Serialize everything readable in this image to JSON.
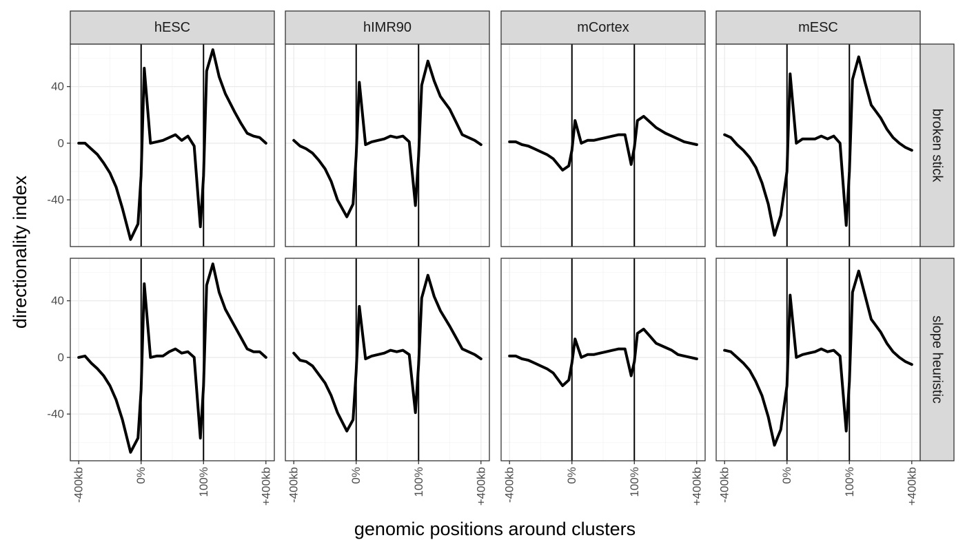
{
  "chart_data": {
    "type": "line",
    "xlabel": "genomic positions around clusters",
    "ylabel": "directionality index",
    "columns": [
      "hESC",
      "hIMR90",
      "mCortex",
      "mESC"
    ],
    "rows": [
      "broken stick",
      "slope heuristic"
    ],
    "x_ticks": [
      {
        "value": -1.0,
        "label": "-400kb"
      },
      {
        "value": 0.0,
        "label": "0%"
      },
      {
        "value": 1.0,
        "label": "100%"
      },
      {
        "value": 2.0,
        "label": "+400kb"
      }
    ],
    "x_range": [
      -1.0,
      2.0
    ],
    "y_ticks": [
      {
        "value": -40,
        "label": "-40"
      },
      {
        "value": 0,
        "label": "0"
      },
      {
        "value": 40,
        "label": "40"
      }
    ],
    "ylim": [
      -73,
      70
    ],
    "vertical_lines": [
      0,
      1
    ],
    "grid": true,
    "series": [
      {
        "column": "hESC",
        "row": "broken stick",
        "x": [
          -1.0,
          -0.9,
          -0.8,
          -0.7,
          -0.6,
          -0.5,
          -0.4,
          -0.3,
          -0.17,
          -0.05,
          0.0,
          0.05,
          0.15,
          0.25,
          0.35,
          0.45,
          0.55,
          0.65,
          0.75,
          0.85,
          0.95,
          1.0,
          1.05,
          1.15,
          1.25,
          1.35,
          1.5,
          1.6,
          1.7,
          1.8,
          1.9,
          2.0
        ],
        "y": [
          0,
          0,
          -4,
          -8,
          -14,
          -21,
          -31,
          -46,
          -68,
          -57,
          -23,
          53,
          0,
          1,
          2,
          4,
          6,
          2,
          5,
          -2,
          -59,
          -23,
          51,
          66,
          47,
          35,
          22,
          14,
          7,
          5,
          4,
          0
        ]
      },
      {
        "column": "hIMR90",
        "row": "broken stick",
        "x": [
          -1.0,
          -0.9,
          -0.8,
          -0.7,
          -0.6,
          -0.5,
          -0.4,
          -0.3,
          -0.15,
          -0.05,
          0.0,
          0.05,
          0.15,
          0.25,
          0.35,
          0.45,
          0.55,
          0.65,
          0.75,
          0.85,
          0.95,
          1.0,
          1.05,
          1.15,
          1.25,
          1.35,
          1.5,
          1.6,
          1.7,
          1.8,
          1.9,
          2.0
        ],
        "y": [
          2,
          -2,
          -4,
          -7,
          -12,
          -18,
          -27,
          -40,
          -52,
          -43,
          -9,
          43,
          -1,
          1,
          2,
          3,
          5,
          4,
          5,
          1,
          -44,
          -9,
          41,
          58,
          44,
          33,
          24,
          15,
          6,
          4,
          2,
          -1
        ]
      },
      {
        "column": "mCortex",
        "row": "broken stick",
        "x": [
          -1.0,
          -0.9,
          -0.8,
          -0.7,
          -0.6,
          -0.5,
          -0.4,
          -0.3,
          -0.15,
          -0.05,
          0.0,
          0.05,
          0.15,
          0.25,
          0.35,
          0.45,
          0.55,
          0.65,
          0.75,
          0.85,
          0.95,
          1.0,
          1.05,
          1.15,
          1.25,
          1.35,
          1.5,
          1.6,
          1.7,
          1.8,
          1.9,
          2.0
        ],
        "y": [
          1,
          1,
          -1,
          -2,
          -4,
          -6,
          -8,
          -11,
          -19,
          -16,
          -5,
          16,
          0,
          2,
          2,
          3,
          4,
          5,
          6,
          6,
          -15,
          -3,
          16,
          19,
          15,
          11,
          7,
          5,
          3,
          1,
          0,
          -1
        ]
      },
      {
        "column": "mESC",
        "row": "broken stick",
        "x": [
          -1.0,
          -0.9,
          -0.8,
          -0.7,
          -0.6,
          -0.5,
          -0.4,
          -0.3,
          -0.2,
          -0.1,
          0.0,
          0.05,
          0.15,
          0.25,
          0.35,
          0.45,
          0.55,
          0.65,
          0.75,
          0.85,
          0.95,
          1.0,
          1.05,
          1.15,
          1.25,
          1.35,
          1.5,
          1.6,
          1.7,
          1.8,
          1.9,
          2.0
        ],
        "y": [
          6,
          4,
          -1,
          -5,
          -10,
          -17,
          -28,
          -43,
          -65,
          -51,
          -20,
          49,
          0,
          3,
          3,
          3,
          5,
          3,
          5,
          0,
          -58,
          -20,
          45,
          61,
          43,
          27,
          18,
          10,
          4,
          0,
          -3,
          -5
        ]
      },
      {
        "column": "hESC",
        "row": "slope heuristic",
        "x": [
          -1.0,
          -0.9,
          -0.8,
          -0.7,
          -0.6,
          -0.5,
          -0.4,
          -0.3,
          -0.17,
          -0.05,
          0.0,
          0.05,
          0.15,
          0.25,
          0.35,
          0.45,
          0.55,
          0.65,
          0.75,
          0.85,
          0.95,
          1.0,
          1.05,
          1.15,
          1.25,
          1.35,
          1.5,
          1.6,
          1.7,
          1.8,
          1.9,
          2.0
        ],
        "y": [
          0,
          1,
          -4,
          -8,
          -13,
          -20,
          -30,
          -44,
          -67,
          -57,
          -23,
          52,
          0,
          1,
          1,
          4,
          6,
          3,
          4,
          0,
          -57,
          -20,
          51,
          66,
          46,
          34,
          22,
          14,
          6,
          4,
          4,
          0
        ]
      },
      {
        "column": "hIMR90",
        "row": "slope heuristic",
        "x": [
          -1.0,
          -0.9,
          -0.8,
          -0.7,
          -0.6,
          -0.5,
          -0.4,
          -0.3,
          -0.15,
          -0.05,
          0.0,
          0.05,
          0.15,
          0.25,
          0.35,
          0.45,
          0.55,
          0.65,
          0.75,
          0.85,
          0.95,
          1.0,
          1.05,
          1.15,
          1.25,
          1.35,
          1.5,
          1.6,
          1.7,
          1.8,
          1.9,
          2.0
        ],
        "y": [
          3,
          -2,
          -3,
          -6,
          -12,
          -18,
          -27,
          -39,
          -52,
          -44,
          -10,
          36,
          -1,
          1,
          2,
          3,
          5,
          4,
          5,
          2,
          -39,
          -5,
          42,
          58,
          43,
          33,
          22,
          14,
          6,
          4,
          2,
          -1
        ]
      },
      {
        "column": "mCortex",
        "row": "slope heuristic",
        "x": [
          -1.0,
          -0.9,
          -0.8,
          -0.7,
          -0.6,
          -0.5,
          -0.4,
          -0.3,
          -0.15,
          -0.05,
          0.0,
          0.05,
          0.15,
          0.25,
          0.35,
          0.45,
          0.55,
          0.65,
          0.75,
          0.85,
          0.95,
          1.0,
          1.05,
          1.15,
          1.25,
          1.35,
          1.5,
          1.6,
          1.7,
          1.8,
          1.9,
          2.0
        ],
        "y": [
          1,
          1,
          -1,
          -2,
          -4,
          -6,
          -8,
          -11,
          -20,
          -16,
          -4,
          13,
          0,
          2,
          2,
          3,
          4,
          5,
          6,
          6,
          -13,
          -3,
          17,
          20,
          15,
          10,
          7,
          5,
          2,
          1,
          0,
          -1
        ]
      },
      {
        "column": "mESC",
        "row": "slope heuristic",
        "x": [
          -1.0,
          -0.9,
          -0.8,
          -0.7,
          -0.6,
          -0.5,
          -0.4,
          -0.3,
          -0.2,
          -0.1,
          0.0,
          0.05,
          0.15,
          0.25,
          0.35,
          0.45,
          0.55,
          0.65,
          0.75,
          0.85,
          0.95,
          1.0,
          1.05,
          1.15,
          1.25,
          1.35,
          1.5,
          1.6,
          1.7,
          1.8,
          1.9,
          2.0
        ],
        "y": [
          5,
          4,
          0,
          -4,
          -9,
          -17,
          -27,
          -42,
          -62,
          -51,
          -20,
          44,
          0,
          2,
          3,
          4,
          6,
          4,
          5,
          1,
          -52,
          -17,
          46,
          61,
          44,
          27,
          18,
          10,
          4,
          0,
          -3,
          -5
        ]
      }
    ]
  }
}
